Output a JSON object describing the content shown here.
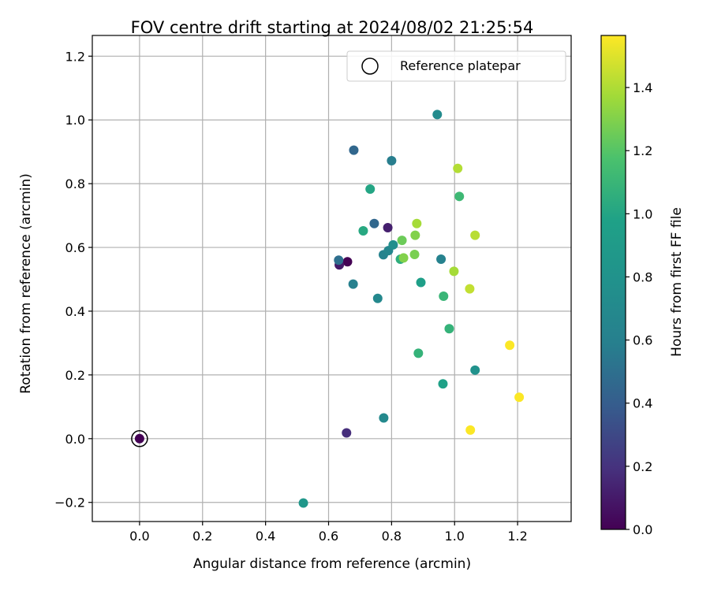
{
  "chart_data": {
    "type": "scatter",
    "title": "FOV centre drift starting at 2024/08/02 21:25:54",
    "xlabel": "Angular distance from reference (arcmin)",
    "ylabel": "Rotation from reference (arcmin)",
    "colorbar_label": "Hours from first FF file",
    "colormap": "viridis",
    "xlim": [
      -0.15,
      1.37
    ],
    "ylim": [
      -0.26,
      1.265
    ],
    "clim": [
      0,
      1.565
    ],
    "grid": true,
    "legend_position": "top-right",
    "x_ticks": [
      {
        "value": 0.0,
        "label": "0.0"
      },
      {
        "value": 0.2,
        "label": "0.2"
      },
      {
        "value": 0.4,
        "label": "0.4"
      },
      {
        "value": 0.6,
        "label": "0.6"
      },
      {
        "value": 0.8,
        "label": "0.8"
      },
      {
        "value": 1.0,
        "label": "1.0"
      },
      {
        "value": 1.2,
        "label": "1.2"
      }
    ],
    "y_ticks": [
      {
        "value": -0.2,
        "label": "−0.2"
      },
      {
        "value": 0.0,
        "label": "0.0"
      },
      {
        "value": 0.2,
        "label": "0.2"
      },
      {
        "value": 0.4,
        "label": "0.4"
      },
      {
        "value": 0.6,
        "label": "0.6"
      },
      {
        "value": 0.8,
        "label": "0.8"
      },
      {
        "value": 1.0,
        "label": "1.0"
      },
      {
        "value": 1.2,
        "label": "1.2"
      }
    ],
    "colorbar_ticks": [
      {
        "value": 0.0,
        "label": "0.0"
      },
      {
        "value": 0.2,
        "label": "0.2"
      },
      {
        "value": 0.4,
        "label": "0.4"
      },
      {
        "value": 0.6,
        "label": "0.6"
      },
      {
        "value": 0.8,
        "label": "0.8"
      },
      {
        "value": 1.0,
        "label": "1.0"
      },
      {
        "value": 1.2,
        "label": "1.2"
      },
      {
        "value": 1.4,
        "label": "1.4"
      }
    ],
    "reference": {
      "name": "Reference platepar",
      "x": 0.0,
      "y": 0.0
    },
    "points": [
      {
        "x": 0.0,
        "y": 0.0,
        "t": 0.0
      },
      {
        "x": 0.66,
        "y": 0.555,
        "t": 0.0
      },
      {
        "x": 0.634,
        "y": 0.545,
        "t": 0.1
      },
      {
        "x": 0.657,
        "y": 0.018,
        "t": 0.18
      },
      {
        "x": 0.788,
        "y": 0.662,
        "t": 0.12
      },
      {
        "x": 0.68,
        "y": 0.905,
        "t": 0.45
      },
      {
        "x": 0.745,
        "y": 0.675,
        "t": 0.45
      },
      {
        "x": 0.632,
        "y": 0.56,
        "t": 0.5
      },
      {
        "x": 0.678,
        "y": 0.485,
        "t": 0.6
      },
      {
        "x": 0.756,
        "y": 0.44,
        "t": 0.68
      },
      {
        "x": 0.8,
        "y": 0.872,
        "t": 0.58
      },
      {
        "x": 0.945,
        "y": 1.017,
        "t": 0.72
      },
      {
        "x": 0.774,
        "y": 0.577,
        "t": 0.63
      },
      {
        "x": 0.79,
        "y": 0.59,
        "t": 0.66
      },
      {
        "x": 0.805,
        "y": 0.608,
        "t": 0.75
      },
      {
        "x": 0.957,
        "y": 0.563,
        "t": 0.62
      },
      {
        "x": 0.775,
        "y": 0.065,
        "t": 0.7
      },
      {
        "x": 1.065,
        "y": 0.215,
        "t": 0.8
      },
      {
        "x": 0.52,
        "y": -0.202,
        "t": 0.85
      },
      {
        "x": 0.732,
        "y": 0.783,
        "t": 1.0
      },
      {
        "x": 0.71,
        "y": 0.652,
        "t": 1.02
      },
      {
        "x": 0.828,
        "y": 0.563,
        "t": 1.05
      },
      {
        "x": 0.893,
        "y": 0.49,
        "t": 0.95
      },
      {
        "x": 0.963,
        "y": 0.172,
        "t": 0.98
      },
      {
        "x": 0.885,
        "y": 0.268,
        "t": 1.08
      },
      {
        "x": 0.965,
        "y": 0.447,
        "t": 1.1
      },
      {
        "x": 0.983,
        "y": 0.345,
        "t": 1.08
      },
      {
        "x": 1.015,
        "y": 0.76,
        "t": 1.12
      },
      {
        "x": 0.833,
        "y": 0.622,
        "t": 1.25
      },
      {
        "x": 0.838,
        "y": 0.567,
        "t": 1.3
      },
      {
        "x": 0.873,
        "y": 0.578,
        "t": 1.28
      },
      {
        "x": 0.875,
        "y": 0.638,
        "t": 1.3
      },
      {
        "x": 0.88,
        "y": 0.675,
        "t": 1.38
      },
      {
        "x": 0.998,
        "y": 0.525,
        "t": 1.38
      },
      {
        "x": 1.065,
        "y": 0.638,
        "t": 1.42
      },
      {
        "x": 1.01,
        "y": 0.848,
        "t": 1.41
      },
      {
        "x": 1.048,
        "y": 0.47,
        "t": 1.44
      },
      {
        "x": 1.175,
        "y": 0.293,
        "t": 1.56
      },
      {
        "x": 1.205,
        "y": 0.13,
        "t": 1.56
      },
      {
        "x": 1.05,
        "y": 0.027,
        "t": 1.56
      }
    ]
  }
}
